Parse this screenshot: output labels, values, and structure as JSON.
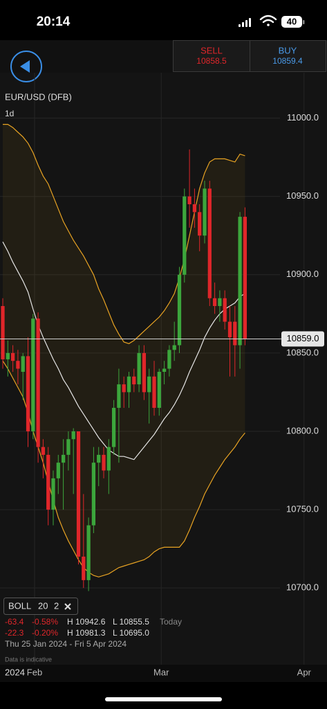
{
  "status": {
    "time": "20:14",
    "battery": "40"
  },
  "header": {
    "sell_label": "SELL",
    "sell_price": "10858.5",
    "buy_label": "BUY",
    "buy_price": "10859.4"
  },
  "chart_data": {
    "type": "candlestick",
    "title": "EUR/USD (DFB)",
    "interval": "1d",
    "up_color": "#3ca63c",
    "down_color": "#e0262a",
    "open": [
      10880,
      10846,
      10850,
      10845,
      10838,
      10848,
      10800,
      10872,
      10790,
      10785,
      10750,
      10770,
      10780,
      10785,
      10795,
      10800,
      10720,
      10705,
      10740,
      10780,
      10785,
      10775,
      10790,
      10815,
      10830,
      10825,
      10835,
      10830,
      10850,
      10825,
      10835,
      10815,
      10838,
      10840,
      10852,
      10855,
      10900,
      10950,
      10945,
      10940,
      10925,
      10955,
      10885,
      10880,
      10885,
      10870,
      10870,
      10855,
      10937
    ],
    "high": [
      10885,
      10858,
      10855,
      10852,
      10850,
      10860,
      10875,
      10876,
      10795,
      10790,
      10775,
      10785,
      10795,
      10800,
      10802,
      10800,
      10760,
      10745,
      10790,
      10790,
      10790,
      10795,
      10820,
      10840,
      10835,
      10838,
      10840,
      10855,
      10855,
      10840,
      10845,
      10840,
      10845,
      10855,
      10870,
      10905,
      10955,
      10980,
      10955,
      10945,
      10960,
      10960,
      10895,
      10890,
      10890,
      10880,
      10880,
      10940,
      10943
    ],
    "low": [
      10840,
      10835,
      10838,
      10830,
      10820,
      10790,
      10795,
      10780,
      10770,
      10740,
      10740,
      10760,
      10750,
      10775,
      10760,
      10715,
      10700,
      10698,
      10735,
      10765,
      10770,
      10760,
      10785,
      10780,
      10815,
      10815,
      10825,
      10825,
      10820,
      10805,
      10810,
      10810,
      10830,
      10835,
      10845,
      10850,
      10895,
      10930,
      10930,
      10915,
      10920,
      10880,
      10875,
      10870,
      10865,
      10835,
      10835,
      10840,
      10855
    ],
    "close": [
      10846,
      10850,
      10845,
      10840,
      10848,
      10800,
      10872,
      10790,
      10785,
      10750,
      10770,
      10780,
      10785,
      10795,
      10800,
      10720,
      10705,
      10740,
      10780,
      10785,
      10775,
      10790,
      10815,
      10830,
      10825,
      10835,
      10830,
      10850,
      10825,
      10835,
      10815,
      10838,
      10840,
      10852,
      10855,
      10900,
      10950,
      10945,
      10940,
      10925,
      10955,
      10885,
      10880,
      10885,
      10870,
      10860,
      10855,
      10937,
      10859
    ],
    "bollinger": {
      "upper_color": "#e8a323",
      "middle_color": "#e6e6e6",
      "lower_color": "#e8a323",
      "upper": [
        10996,
        10996,
        10994,
        10991,
        10988,
        10984,
        10978,
        10970,
        10963,
        10958,
        10950,
        10942,
        10934,
        10928,
        10922,
        10917,
        10912,
        10906,
        10900,
        10891,
        10884,
        10876,
        10868,
        10862,
        10857,
        10856,
        10858,
        10861,
        10864,
        10867,
        10870,
        10873,
        10877,
        10882,
        10888,
        10898,
        10910,
        10925,
        10940,
        10955,
        10965,
        10972,
        10974,
        10974,
        10974,
        10973,
        10972,
        10977,
        10976
      ],
      "middle": [
        10921,
        10915,
        10908,
        10902,
        10896,
        10889,
        10878,
        10868,
        10860,
        10853,
        10846,
        10840,
        10833,
        10828,
        10822,
        10816,
        10811,
        10806,
        10801,
        10796,
        10792,
        10788,
        10786,
        10784,
        10784,
        10783,
        10782,
        10786,
        10790,
        10794,
        10798,
        10803,
        10808,
        10812,
        10817,
        10823,
        10830,
        10838,
        10845,
        10852,
        10860,
        10866,
        10871,
        10875,
        10878,
        10880,
        10882,
        10886,
        10888
      ],
      "lower": [
        10845,
        10840,
        10834,
        10828,
        10822,
        10812,
        10800,
        10790,
        10780,
        10768,
        10756,
        10745,
        10737,
        10730,
        10724,
        10718,
        10713,
        10710,
        10708,
        10707,
        10708,
        10709,
        10711,
        10713,
        10714,
        10715,
        10716,
        10717,
        10718,
        10720,
        10723,
        10725,
        10726,
        10726,
        10726,
        10726,
        10730,
        10737,
        10745,
        10752,
        10760,
        10766,
        10772,
        10777,
        10782,
        10786,
        10790,
        10795,
        10799
      ]
    },
    "last_price": {
      "value": 10859.0,
      "label": "10859.0"
    },
    "ylim": [
      10651,
      11029
    ],
    "yticks": [
      {
        "value": 10700,
        "label": "10700.0"
      },
      {
        "value": 10750,
        "label": "10750.0"
      },
      {
        "value": 10800,
        "label": "10800.0"
      },
      {
        "value": 10850,
        "label": "10850.0"
      },
      {
        "value": 10900,
        "label": "10900.0"
      },
      {
        "value": 10950,
        "label": "10950.0"
      },
      {
        "value": 11000,
        "label": "11000.0"
      }
    ],
    "xlim": [
      -0.55,
      64.25
    ],
    "xticks": [
      {
        "value": 6.3,
        "label": "Feb"
      },
      {
        "value": 31.4,
        "label": "Mar"
      },
      {
        "value": 59.7,
        "label": "Apr"
      }
    ],
    "year_label": "2024",
    "grid": true
  },
  "info": {
    "indicator": {
      "name": "BOLL",
      "period": "20",
      "deviation": "2"
    },
    "rows": [
      {
        "change": "-63.4",
        "percent": "-0.58%",
        "high": "H 10942.6",
        "low": "L 10855.5",
        "when": "Today"
      },
      {
        "change": "-22.3",
        "percent": "-0.20%",
        "high": "H 10981.3",
        "low": "L 10695.0"
      }
    ],
    "date_range": "Thu 25 Jan 2024 - Fri 5 Apr 2024",
    "note": "Data is indicative"
  }
}
